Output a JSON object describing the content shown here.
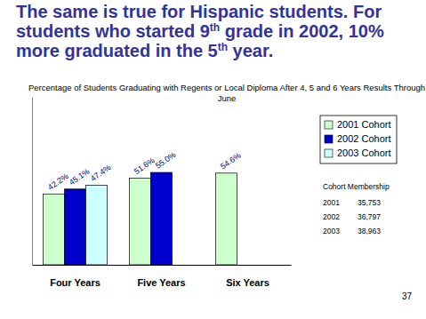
{
  "chart_data": {
    "type": "bar",
    "title": "The same is true for Hispanic students. For students who started 9th grade in 2002, 10% more graduated in the 5th year.",
    "subtitle": "Percentage of Students Graduating with Regents or Local Diploma After 4, 5 and 6 Years Results Through June",
    "categories": [
      "Four Years",
      "Five Years",
      "Six Years"
    ],
    "series": [
      {
        "name": "2001 Cohort",
        "color": "#ccffcc",
        "values": [
          42.2,
          51.6,
          54.6
        ],
        "value_labels": [
          "42.2%",
          "51.6%",
          "54.6%"
        ]
      },
      {
        "name": "2002 Cohort",
        "color": "#0000cc",
        "values": [
          45.1,
          55.0,
          null
        ],
        "value_labels": [
          "45.1%",
          "55.0%",
          null
        ]
      },
      {
        "name": "2003 Cohort",
        "color": "#ccffff",
        "values": [
          47.4,
          null,
          null
        ],
        "value_labels": [
          "47.4%",
          null,
          null
        ]
      }
    ],
    "ylim": [
      0,
      100
    ],
    "tick_labels": "x",
    "data_labels": true,
    "legend": "right",
    "cohort_membership": {
      "title": "Cohort Membership",
      "rows": [
        [
          "2001",
          "35,753"
        ],
        [
          "2002",
          "36,797"
        ],
        [
          "2003",
          "38,963"
        ]
      ]
    },
    "page_number": "37"
  }
}
